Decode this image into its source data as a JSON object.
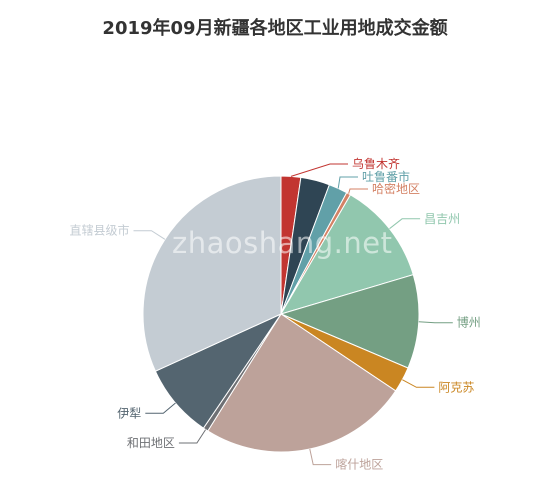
{
  "chart_data": {
    "type": "pie",
    "title": "2019年09月新疆各地区工业用地成交金额",
    "series": [
      {
        "name": "乌鲁木齐",
        "value": 2.3,
        "color": "#c23531"
      },
      {
        "name": "",
        "value": 3.4,
        "color": "#2f4554"
      },
      {
        "name": "吐鲁番市",
        "value": 2.2,
        "color": "#61a0a8"
      },
      {
        "name": "哈密地区",
        "value": 0.5,
        "color": "#d48265"
      },
      {
        "name": "昌吉州",
        "value": 12.0,
        "color": "#91c7ae"
      },
      {
        "name": "博州",
        "value": 11.0,
        "color": "#749f83"
      },
      {
        "name": "阿克苏",
        "value": 3.0,
        "color": "#ca8622"
      },
      {
        "name": "喀什地区",
        "value": 24.5,
        "color": "#bda29a"
      },
      {
        "name": "和田地区",
        "value": 0.6,
        "color": "#6e7074"
      },
      {
        "name": "伊犁",
        "value": 8.7,
        "color": "#546570"
      },
      {
        "name": "直辖县级市",
        "value": 31.8,
        "color": "#c4ccd3"
      }
    ]
  },
  "watermark": "zhaoshang.net"
}
